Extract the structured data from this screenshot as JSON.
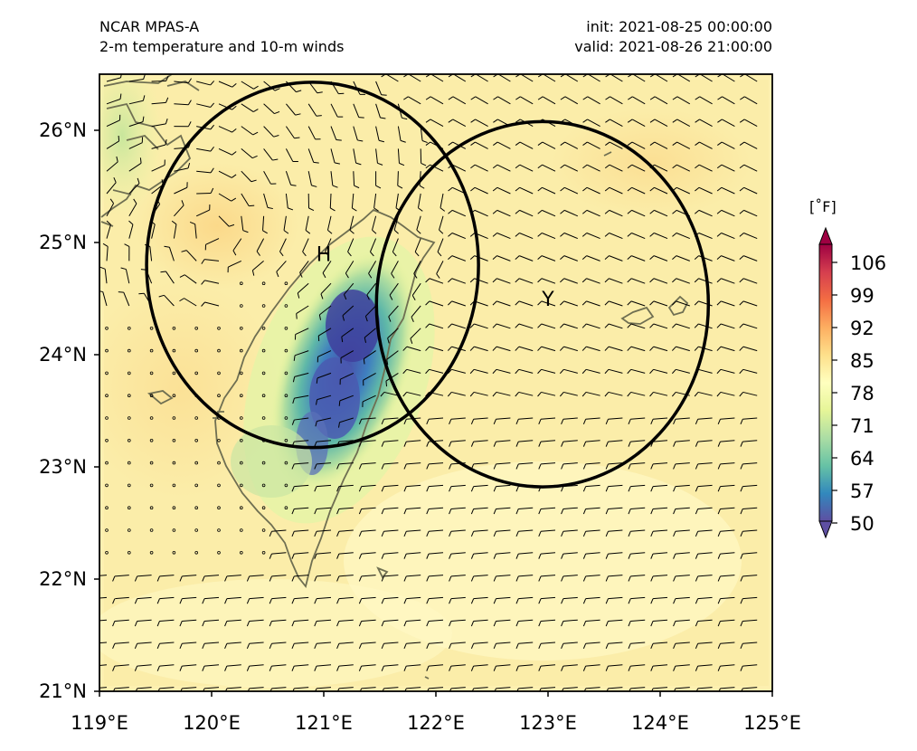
{
  "header": {
    "model": "NCAR MPAS-A",
    "fields": "2-m temperature and 10-m winds",
    "init": "init: 2021-08-25 00:00:00",
    "valid": "valid: 2021-08-26 21:00:00"
  },
  "map": {
    "lon_ticks": [
      "119°E",
      "120°E",
      "121°E",
      "122°E",
      "123°E",
      "124°E",
      "125°E"
    ],
    "lat_ticks": [
      "21°N",
      "22°N",
      "23°N",
      "24°N",
      "25°N",
      "26°N"
    ],
    "extent": {
      "lon": [
        119,
        125
      ],
      "lat": [
        21,
        26.5
      ]
    },
    "markers": [
      {
        "label": "H",
        "lon": 121.0,
        "lat": 24.9
      },
      {
        "label": "Y",
        "lon": 123.0,
        "lat": 24.5
      }
    ],
    "circles": [
      {
        "center_lon": 120.9,
        "center_lat": 24.8,
        "radius_deg": 1.48
      },
      {
        "center_lon": 122.95,
        "center_lat": 24.45,
        "radius_deg": 1.48
      }
    ],
    "wind_vortex_center": {
      "lon": 120.0,
      "lat": 25.1
    }
  },
  "colorbar": {
    "unit": "[˚F]",
    "ticks": [
      "106",
      "99",
      "92",
      "85",
      "78",
      "71",
      "64",
      "57",
      "50"
    ],
    "colormap": "Spectral_r",
    "colors": [
      "#5e4fa2",
      "#3288bd",
      "#66c2a5",
      "#abdda4",
      "#e6f598",
      "#ffffbf",
      "#fee08b",
      "#fdae61",
      "#f46d43",
      "#d53e4f",
      "#9e0142"
    ],
    "extend": "both"
  }
}
